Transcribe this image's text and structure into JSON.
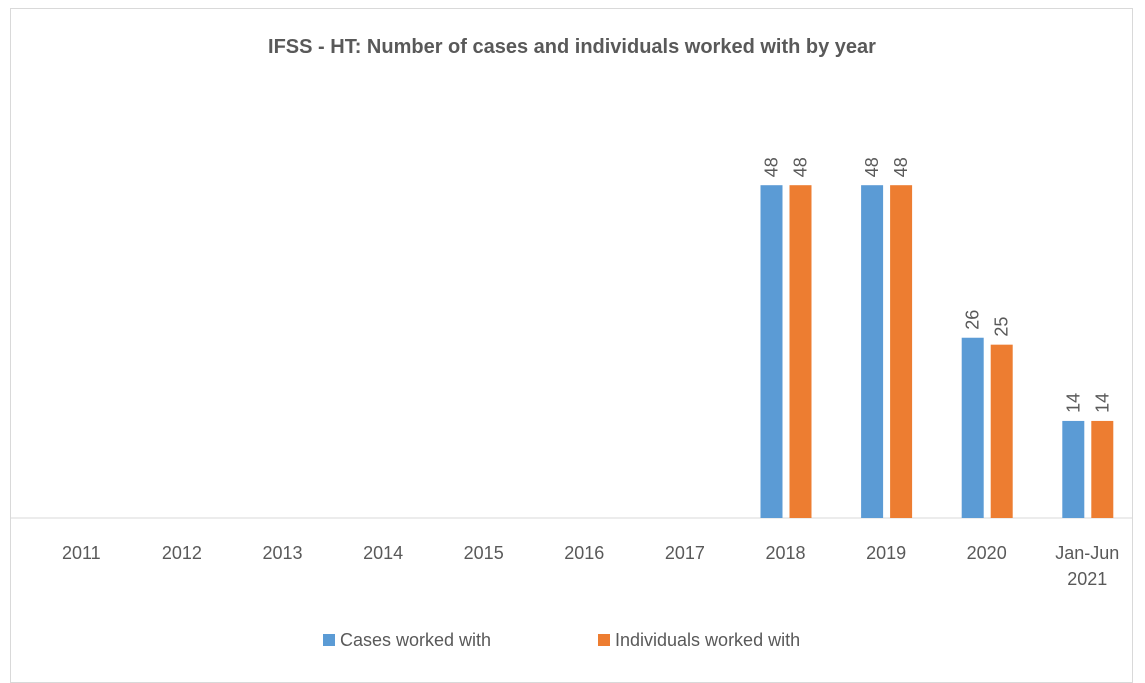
{
  "chart_data": {
    "type": "bar",
    "title": "IFSS - HT: Number of cases and individuals worked with by year",
    "categories": [
      "2011",
      "2012",
      "2013",
      "2014",
      "2015",
      "2016",
      "2017",
      "2018",
      "2019",
      "2020",
      "Jan-Jun 2021"
    ],
    "series": [
      {
        "name": "Cases worked with",
        "color": "#5b9bd5",
        "values": [
          null,
          null,
          null,
          null,
          null,
          null,
          null,
          48,
          48,
          26,
          14
        ]
      },
      {
        "name": "Individuals worked with",
        "color": "#ed7d31",
        "values": [
          null,
          null,
          null,
          null,
          null,
          null,
          null,
          48,
          48,
          25,
          14
        ]
      }
    ],
    "ylim": [
      0,
      60
    ],
    "legend": "bottom"
  }
}
